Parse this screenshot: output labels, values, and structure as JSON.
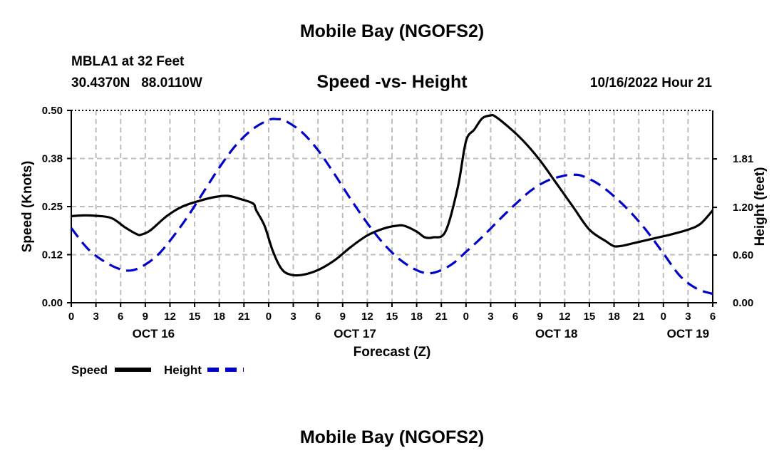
{
  "page": {
    "title": "Mobile Bay (NGOFS2)",
    "footer_title": "Mobile Bay (NGOFS2)",
    "station": "MBLA1 at 32 Feet",
    "coords": "30.4370N   88.0110W",
    "subtitle": "Speed -vs- Height",
    "run_time": "10/16/2022 Hour 21"
  },
  "chart_data": {
    "type": "line",
    "title": "Speed -vs- Height",
    "xlabel": "Forecast (Z)",
    "ylabel": "Speed (Knots)",
    "ylabel_right": "Height (feet)",
    "grid": true,
    "legend_position": "bottom-left",
    "x_hours_range": [
      0,
      78
    ],
    "ylim": [
      0,
      0.5
    ],
    "ylim_right": [
      0,
      2.42
    ],
    "y_ticks": [
      "0.00",
      "0.12",
      "0.25",
      "0.38",
      "0.50"
    ],
    "y_ticks_right": [
      "0.00",
      "0.60",
      "1.20",
      "1.81"
    ],
    "x_tick_labels": [
      "0",
      "3",
      "6",
      "9",
      "12",
      "15",
      "18",
      "21",
      "0",
      "3",
      "6",
      "9",
      "12",
      "15",
      "18",
      "21",
      "0",
      "3",
      "6",
      "9",
      "12",
      "15",
      "18",
      "21",
      "0",
      "3",
      "6"
    ],
    "day_labels": [
      {
        "label": "OCT 16",
        "hour": 10
      },
      {
        "label": "OCT 17",
        "hour": 34.5
      },
      {
        "label": "OCT 18",
        "hour": 59
      },
      {
        "label": "OCT 19",
        "hour": 75
      }
    ],
    "series": [
      {
        "name": "Speed",
        "color": "#000000",
        "dash": "solid",
        "axis": "left",
        "x": [
          0,
          1.5,
          3,
          4.9,
          6.6,
          8,
          8.5,
          9.6,
          11.6,
          13.5,
          15.6,
          17.5,
          19,
          20.5,
          22.1,
          22.5,
          23.5,
          24.5,
          25.5,
          26.5,
          28,
          30,
          32,
          34,
          36,
          38,
          39.5,
          40.5,
          42,
          43,
          44,
          45.5,
          47,
          48,
          49,
          50,
          51,
          51.5,
          53,
          55,
          57,
          59,
          61,
          63,
          65,
          66,
          67,
          68,
          69,
          71,
          73,
          75,
          76.5,
          78
        ],
        "values": [
          0.225,
          0.227,
          0.226,
          0.22,
          0.195,
          0.178,
          0.177,
          0.188,
          0.225,
          0.25,
          0.265,
          0.275,
          0.278,
          0.27,
          0.258,
          0.24,
          0.2,
          0.135,
          0.09,
          0.074,
          0.072,
          0.085,
          0.11,
          0.145,
          0.175,
          0.193,
          0.2,
          0.2,
          0.185,
          0.17,
          0.17,
          0.185,
          0.3,
          0.42,
          0.45,
          0.48,
          0.487,
          0.485,
          0.46,
          0.42,
          0.37,
          0.31,
          0.25,
          0.19,
          0.16,
          0.147,
          0.148,
          0.153,
          0.158,
          0.168,
          0.178,
          0.19,
          0.205,
          0.24
        ]
      },
      {
        "name": "Height",
        "color": "#0000cc",
        "dash": "dashed",
        "axis": "right",
        "x": [
          0,
          2,
          4,
          6,
          7.5,
          9,
          10.5,
          12,
          14,
          16,
          18,
          20,
          22,
          24,
          25,
          26,
          28,
          30,
          32,
          34,
          36,
          38,
          40,
          42,
          43.5,
          45,
          46.5,
          48,
          50,
          52,
          54,
          56,
          58,
          60,
          61,
          62,
          64,
          66,
          68,
          70,
          72,
          74,
          76,
          78
        ],
        "values": [
          0.94,
          0.68,
          0.52,
          0.42,
          0.41,
          0.48,
          0.6,
          0.78,
          1.06,
          1.38,
          1.7,
          1.98,
          2.18,
          2.3,
          2.31,
          2.29,
          2.15,
          1.92,
          1.62,
          1.3,
          1.0,
          0.74,
          0.54,
          0.41,
          0.37,
          0.41,
          0.5,
          0.64,
          0.83,
          1.04,
          1.24,
          1.42,
          1.54,
          1.6,
          1.61,
          1.6,
          1.5,
          1.34,
          1.14,
          0.9,
          0.62,
          0.34,
          0.18,
          0.11
        ]
      }
    ]
  }
}
